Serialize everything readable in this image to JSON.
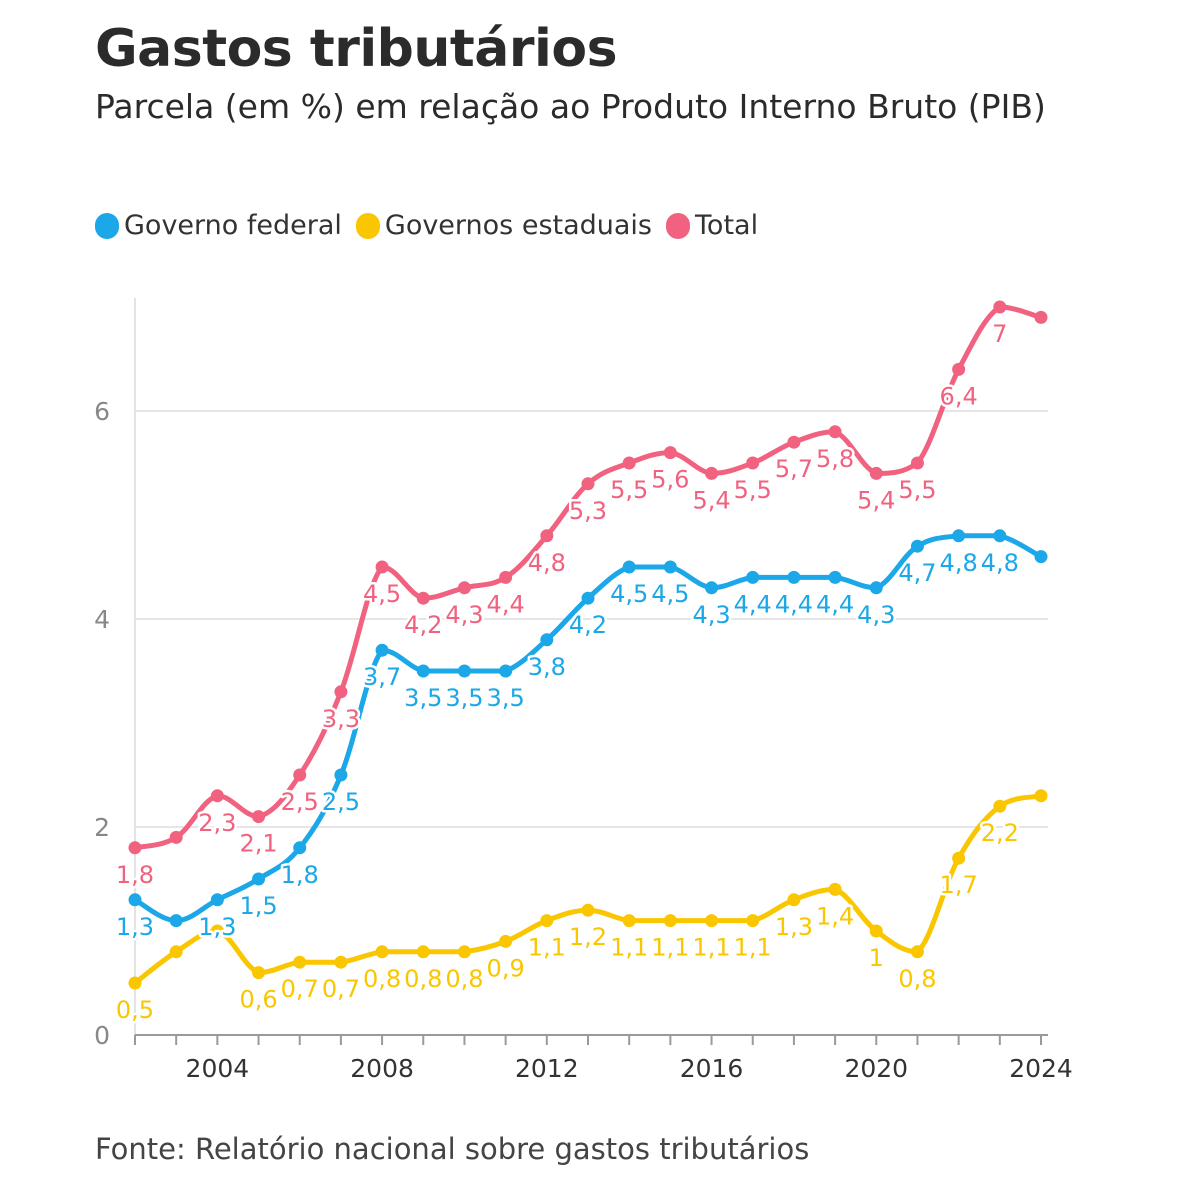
{
  "header": {
    "title": "Gastos tributários",
    "subtitle": "Parcela (em %) em relação ao Produto Interno Bruto (PIB)"
  },
  "legend": [
    {
      "label": "Governo federal",
      "color": "#1ba7e8"
    },
    {
      "label": "Governos estaduais",
      "color": "#f9c600"
    },
    {
      "label": "Total",
      "color": "#f0627f"
    }
  ],
  "footer": {
    "source": "Fonte: Relatório nacional sobre gastos tributários"
  },
  "chart_data": {
    "type": "line",
    "x": [
      2002,
      2003,
      2004,
      2005,
      2006,
      2007,
      2008,
      2009,
      2010,
      2011,
      2012,
      2013,
      2014,
      2015,
      2016,
      2017,
      2018,
      2019,
      2020,
      2021,
      2022,
      2023,
      2024
    ],
    "x_ticks": [
      "2004",
      "2008",
      "2012",
      "2016",
      "2020",
      "2024"
    ],
    "y_ticks": [
      "0",
      "2",
      "4",
      "6"
    ],
    "ylim": [
      0,
      7.1
    ],
    "grid": true,
    "series": [
      {
        "name": "Governo federal",
        "color": "#1ba7e8",
        "values": [
          1.3,
          1.1,
          1.3,
          1.5,
          1.8,
          2.5,
          3.7,
          3.5,
          3.5,
          3.5,
          3.8,
          4.2,
          4.5,
          4.5,
          4.3,
          4.4,
          4.4,
          4.4,
          4.3,
          4.7,
          4.8,
          4.8,
          4.6
        ],
        "labels": [
          "1,3",
          "",
          "1,3",
          "1,5",
          "1,8",
          "2,5",
          "3,7",
          "3,5",
          "3,5",
          "3,5",
          "3,8",
          "4,2",
          "4,5",
          "4,5",
          "4,3",
          "4,4",
          "4,4",
          "4,4",
          "4,3",
          "4,7",
          "4,8",
          "4,8",
          ""
        ]
      },
      {
        "name": "Governos estaduais",
        "color": "#f9c600",
        "values": [
          0.5,
          0.8,
          1.0,
          0.6,
          0.7,
          0.7,
          0.8,
          0.8,
          0.8,
          0.9,
          1.1,
          1.2,
          1.1,
          1.1,
          1.1,
          1.1,
          1.3,
          1.4,
          1.0,
          0.8,
          1.7,
          2.2,
          2.3
        ],
        "labels": [
          "0,5",
          "",
          "",
          "0,6",
          "0,7",
          "0,7",
          "0,8",
          "0,8",
          "0,8",
          "0,9",
          "1,1",
          "1,2",
          "1,1",
          "1,1",
          "1,1",
          "1,1",
          "1,3",
          "1,4",
          "1",
          "0,8",
          "1,7",
          "2,2",
          ""
        ]
      },
      {
        "name": "Total",
        "color": "#f0627f",
        "values": [
          1.8,
          1.9,
          2.3,
          2.1,
          2.5,
          3.3,
          4.5,
          4.2,
          4.3,
          4.4,
          4.8,
          5.3,
          5.5,
          5.6,
          5.4,
          5.5,
          5.7,
          5.8,
          5.4,
          5.5,
          6.4,
          7.0,
          6.9
        ],
        "labels": [
          "1,8",
          "",
          "2,3",
          "2,1",
          "2,5",
          "3,3",
          "4,5",
          "4,2",
          "4,3",
          "4,4",
          "4,8",
          "5,3",
          "5,5",
          "5,6",
          "5,4",
          "5,5",
          "5,7",
          "5,8",
          "5,4",
          "5,5",
          "6,4",
          "7",
          ""
        ]
      }
    ]
  }
}
